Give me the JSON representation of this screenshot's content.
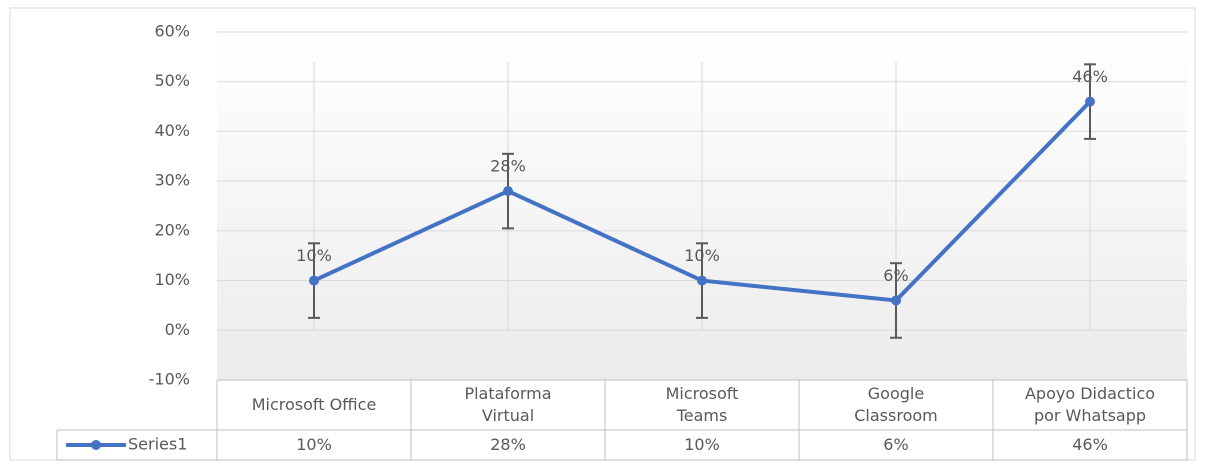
{
  "chart_data": {
    "type": "line",
    "categories": [
      "Microsoft Office",
      "Plataforma\nVirtual",
      "Microsoft\nTeams",
      "Google\nClassroom",
      "Apoyo Didactico\npor Whatsapp"
    ],
    "series": [
      {
        "name": "Series1",
        "color": "#4472c4",
        "values": [
          10,
          28,
          10,
          6,
          46
        ],
        "value_labels": [
          "10%",
          "28%",
          "10%",
          "6%",
          "46%"
        ],
        "error": [
          7.5,
          7.5,
          7.5,
          7.5,
          7.5
        ]
      }
    ],
    "ylim": [
      -10,
      60
    ],
    "yticks": [
      {
        "value": -10,
        "label": "-10%"
      },
      {
        "value": 0,
        "label": "0%"
      },
      {
        "value": 10,
        "label": "10%"
      },
      {
        "value": 20,
        "label": "20%"
      },
      {
        "value": 30,
        "label": "30%"
      },
      {
        "value": 40,
        "label": "40%"
      },
      {
        "value": 50,
        "label": "50%"
      },
      {
        "value": 60,
        "label": "60%"
      }
    ],
    "grid": true
  }
}
